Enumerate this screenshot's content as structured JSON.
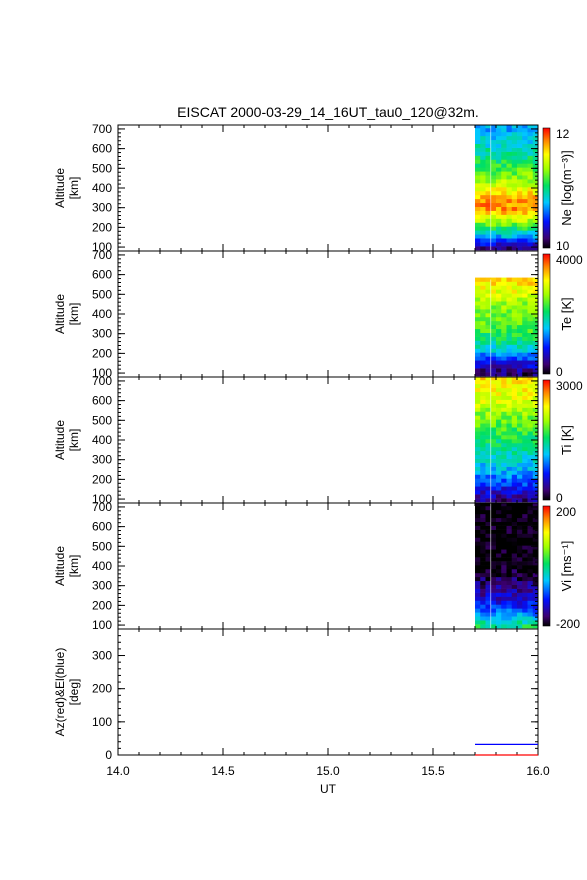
{
  "chart_data": {
    "type": "heatmap",
    "title": "EISCAT 2000-03-29_14_16UT_tau0_120@32m.",
    "xlabel": "UT",
    "xlim": [
      14.0,
      16.0
    ],
    "x_ticks": [
      "14.0",
      "14.5",
      "15.0",
      "15.5",
      "16.0"
    ],
    "data_start_ut": 15.7,
    "data_end_ut": 16.0,
    "panels": [
      {
        "id": "ne",
        "ylabel_line1": "Altitude",
        "ylabel_line2": "[km]",
        "ylim": [
          80,
          720
        ],
        "y_ticks": [
          "100",
          "200",
          "300",
          "400",
          "500",
          "600",
          "700"
        ],
        "y_tick_values": [
          100,
          200,
          300,
          400,
          500,
          600,
          700
        ],
        "colorbar_label": "Ne [log(m⁻³)]",
        "colorbar_range": [
          10,
          12
        ],
        "colorbar_max_label": "12",
        "colorbar_min_label": "10",
        "profile_altitudes": [
          100,
          150,
          200,
          250,
          300,
          350,
          400,
          450,
          500,
          550,
          600,
          650,
          700
        ],
        "profile_values": [
          10.2,
          10.7,
          11.1,
          11.5,
          11.8,
          11.7,
          11.5,
          11.3,
          11.15,
          11.0,
          10.9,
          10.8,
          10.7
        ]
      },
      {
        "id": "te",
        "ylabel_line1": "Altitude",
        "ylabel_line2": "[km]",
        "ylim": [
          80,
          720
        ],
        "y_ticks": [
          "100",
          "200",
          "300",
          "400",
          "500",
          "600",
          "700"
        ],
        "y_tick_values": [
          100,
          200,
          300,
          400,
          500,
          600,
          700
        ],
        "colorbar_label": "Te [K]",
        "colorbar_range": [
          0,
          4000
        ],
        "colorbar_max_label": "4000",
        "colorbar_min_label": "0",
        "profile_altitudes": [
          100,
          150,
          200,
          250,
          300,
          350,
          400,
          450,
          500,
          550
        ],
        "profile_values": [
          300,
          800,
          1400,
          1900,
          2200,
          2400,
          2500,
          2600,
          2900,
          3200
        ]
      },
      {
        "id": "ti",
        "ylabel_line1": "Altitude",
        "ylabel_line2": "[km]",
        "ylim": [
          80,
          720
        ],
        "y_ticks": [
          "100",
          "200",
          "300",
          "400",
          "500",
          "600",
          "700"
        ],
        "y_tick_values": [
          100,
          200,
          300,
          400,
          500,
          600,
          700
        ],
        "colorbar_label": "Ti [K]",
        "colorbar_range": [
          0,
          3000
        ],
        "colorbar_max_label": "3000",
        "colorbar_min_label": "0",
        "profile_altitudes": [
          100,
          150,
          200,
          250,
          300,
          350,
          400,
          450,
          500,
          550,
          600,
          650,
          700
        ],
        "profile_values": [
          300,
          600,
          900,
          1100,
          1250,
          1400,
          1550,
          1700,
          1850,
          2000,
          2200,
          2300,
          2400
        ]
      },
      {
        "id": "vi",
        "ylabel_line1": "Altitude",
        "ylabel_line2": "[km]",
        "ylim": [
          80,
          720
        ],
        "y_ticks": [
          "100",
          "200",
          "300",
          "400",
          "500",
          "600",
          "700"
        ],
        "y_tick_values": [
          100,
          200,
          300,
          400,
          500,
          600,
          700
        ],
        "colorbar_label": "Vi [ms⁻¹]",
        "colorbar_range": [
          -200,
          200
        ],
        "colorbar_max_label": "200",
        "colorbar_min_label": "-200",
        "profile_altitudes": [
          100,
          150,
          200,
          250,
          300,
          350,
          400,
          450,
          500,
          550,
          600,
          650,
          700
        ],
        "profile_values": [
          0,
          -60,
          -110,
          -140,
          -160,
          -180,
          -200,
          -200,
          -200,
          -200,
          -200,
          -200,
          -200
        ]
      }
    ],
    "angle_panel": {
      "ylabel_line1": "Az(red)&El(blue)",
      "ylabel_line2": "[deg]",
      "ylim": [
        0,
        380
      ],
      "y_ticks": [
        "0",
        "100",
        "200",
        "300"
      ],
      "y_tick_values": [
        0,
        100,
        200,
        300
      ],
      "series": [
        {
          "color": "#ff0000",
          "x": [
            15.7,
            16.0
          ],
          "y": [
            0,
            0
          ]
        },
        {
          "color": "#0000ff",
          "x": [
            15.7,
            16.0
          ],
          "y": [
            32,
            32
          ]
        }
      ]
    }
  }
}
